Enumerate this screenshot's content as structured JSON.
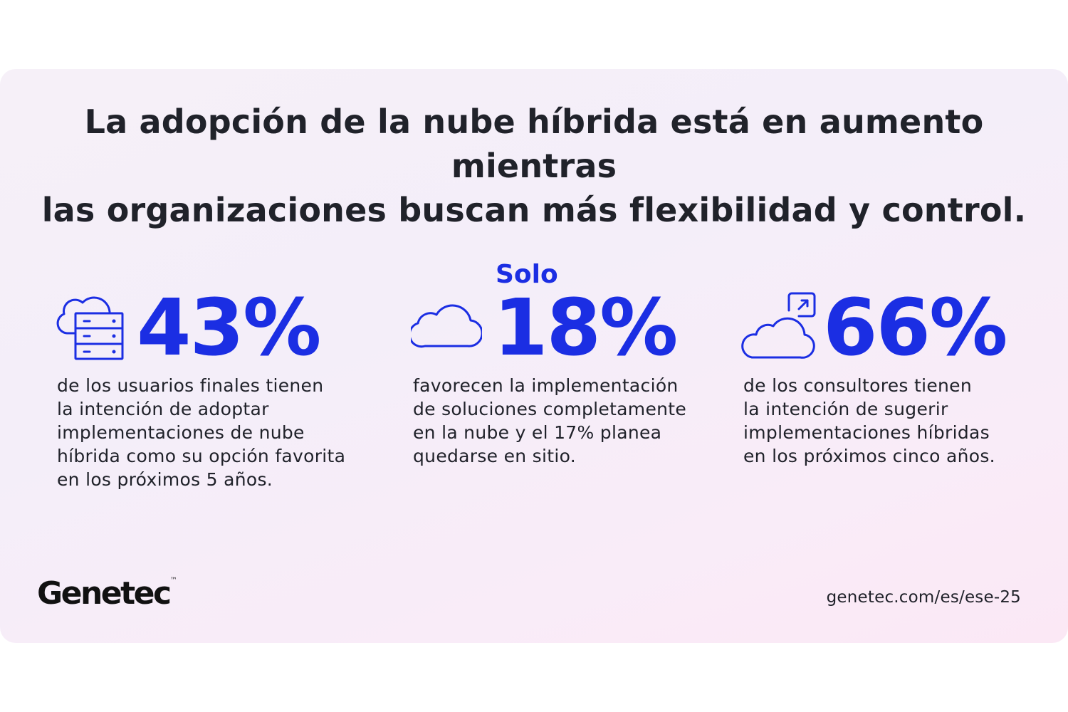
{
  "headline": {
    "line1": "La adopción de la nube híbrida está en aumento mientras",
    "line2": "las organizaciones buscan más flexibilidad y control."
  },
  "stats": [
    {
      "prefix": "",
      "value": "43%",
      "icon": "cloud-server-icon",
      "lines": [
        "de los usuarios finales tienen",
        "la intención de adoptar",
        "implementaciones de nube",
        "híbrida como su opción favorita",
        "en los próximos 5 años."
      ]
    },
    {
      "prefix": "Solo",
      "value": "18%",
      "icon": "cloud-icon",
      "lines": [
        "favorecen la implementación",
        "de soluciones completamente",
        "en la nube y el 17% planea",
        "quedarse en sitio."
      ]
    },
    {
      "prefix": "",
      "value": "66%",
      "icon": "cloud-arrow-icon",
      "lines": [
        "de los consultores tienen",
        "la intención de sugerir",
        "implementaciones híbridas",
        "en los próximos cinco años."
      ]
    }
  ],
  "footer": {
    "logo": "Genetec",
    "trademark": "™",
    "url": "genetec.com/es/ese-25"
  },
  "colors": {
    "accent": "#1b2ee3",
    "text": "#20222a"
  }
}
